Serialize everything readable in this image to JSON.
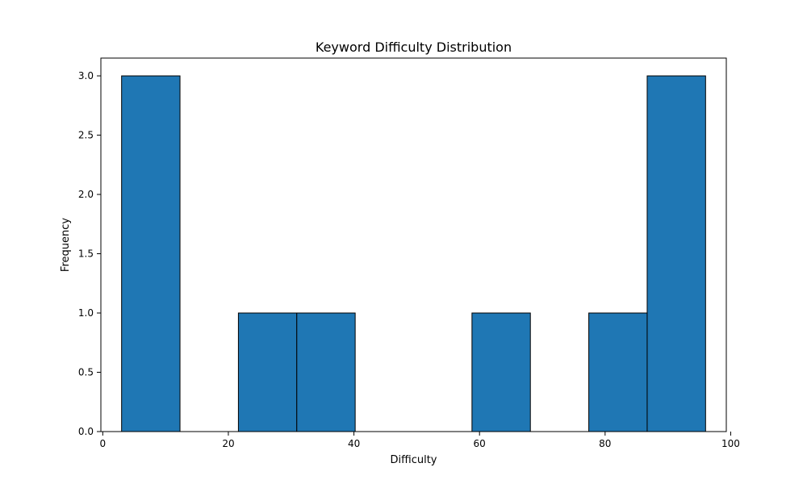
{
  "chart_data": {
    "type": "bar",
    "subtype": "histogram",
    "title": "Keyword Difficulty Distribution",
    "xlabel": "Difficulty",
    "ylabel": "Frequency",
    "xlim": [
      -0.3,
      99.3
    ],
    "ylim": [
      0,
      3.15
    ],
    "bin_edges": [
      3.0,
      12.3,
      21.6,
      30.9,
      40.2,
      49.5,
      58.8,
      68.1,
      77.4,
      86.7,
      96.0
    ],
    "values": [
      3,
      0,
      1,
      1,
      0,
      0,
      1,
      0,
      1,
      3
    ],
    "xticks": [
      0,
      20,
      40,
      60,
      80,
      100
    ],
    "yticks": [
      0.0,
      0.5,
      1.0,
      1.5,
      2.0,
      2.5,
      3.0
    ],
    "xtick_labels": [
      "0",
      "20",
      "40",
      "60",
      "80",
      "100"
    ],
    "ytick_labels": [
      "0.0",
      "0.5",
      "1.0",
      "1.5",
      "2.0",
      "2.5",
      "3.0"
    ],
    "grid": false,
    "bar_color": "#1f77b4",
    "edge_color": "#000000"
  }
}
